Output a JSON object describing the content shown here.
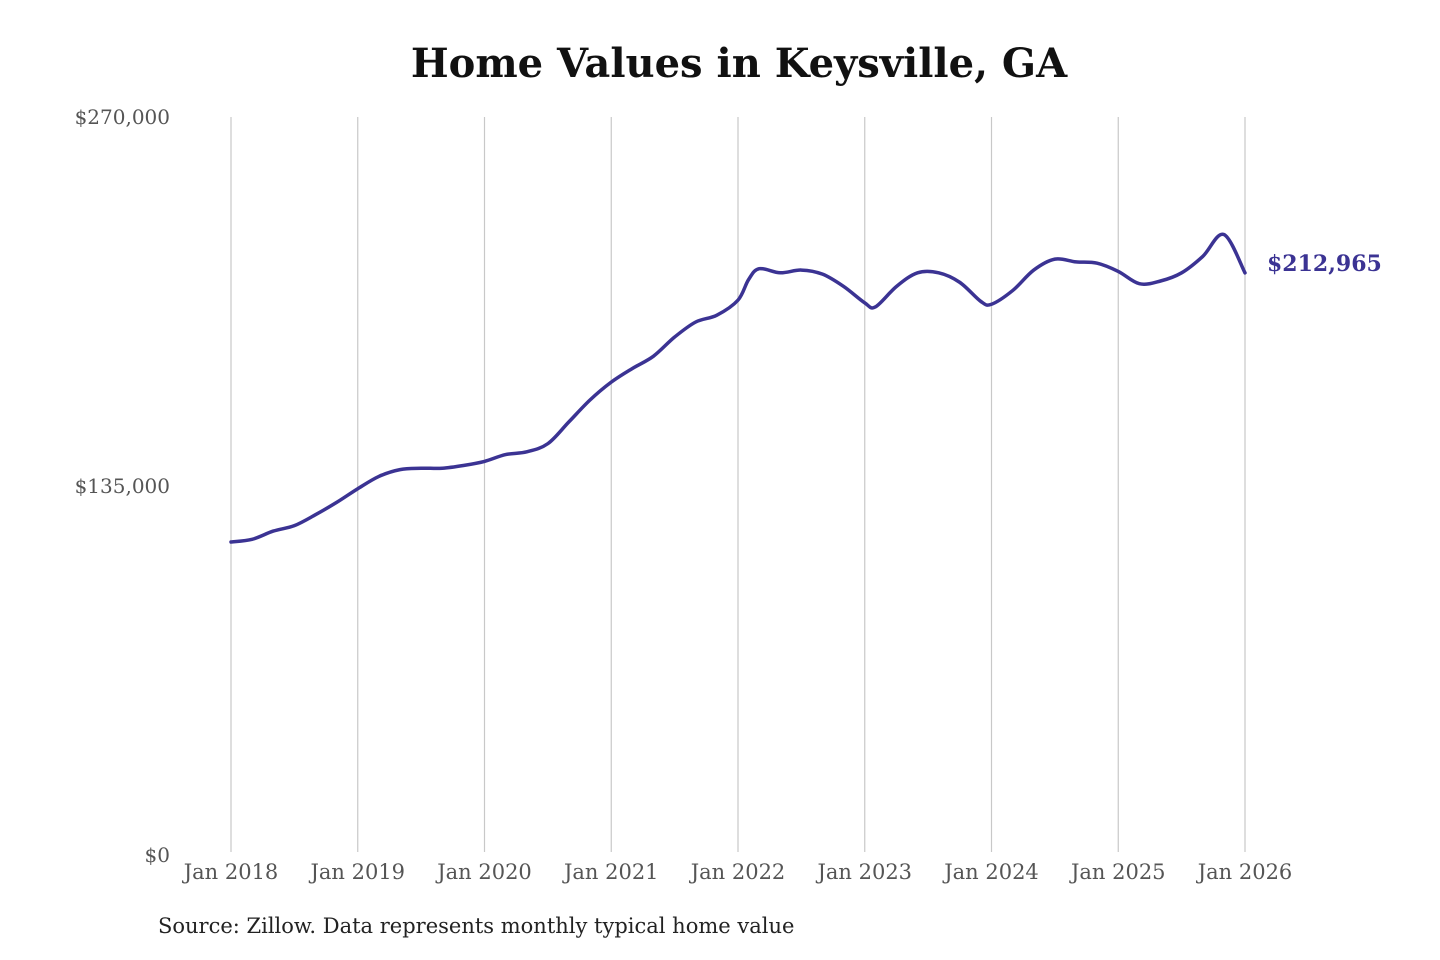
{
  "title": "Home Values in Keysville, GA",
  "source": "Source: Zillow. Data represents monthly typical home value",
  "colors": {
    "line": "#3b3393",
    "grid": "#c8c8c8",
    "text": "#555555"
  },
  "chart_data": {
    "type": "line",
    "title": "Home Values in Keysville, GA",
    "xlabel": "",
    "ylabel": "",
    "ylim": [
      0,
      270000
    ],
    "xlim": [
      "2018-01",
      "2026-01"
    ],
    "grid": "vertical",
    "legend": "none",
    "y_ticks": [
      {
        "value": 0,
        "label": "$0"
      },
      {
        "value": 135000,
        "label": "$135,000"
      },
      {
        "value": 270000,
        "label": "$270,000"
      }
    ],
    "x_ticks": [
      {
        "date": "2018-01",
        "label": "Jan 2018"
      },
      {
        "date": "2019-01",
        "label": "Jan 2019"
      },
      {
        "date": "2020-01",
        "label": "Jan 2020"
      },
      {
        "date": "2021-01",
        "label": "Jan 2021"
      },
      {
        "date": "2022-01",
        "label": "Jan 2022"
      },
      {
        "date": "2023-01",
        "label": "Jan 2023"
      },
      {
        "date": "2024-01",
        "label": "Jan 2024"
      },
      {
        "date": "2025-01",
        "label": "Jan 2025"
      },
      {
        "date": "2026-01",
        "label": "Jan 2026"
      }
    ],
    "end_label": "$212,965",
    "series": [
      {
        "x": [
          "2018-01",
          "2018-03",
          "2018-05",
          "2018-07",
          "2018-09",
          "2018-11",
          "2019-01",
          "2019-03",
          "2019-05",
          "2019-07",
          "2019-09",
          "2019-11",
          "2020-01",
          "2020-03",
          "2020-05",
          "2020-07",
          "2020-09",
          "2020-11",
          "2021-01",
          "2021-03",
          "2021-05",
          "2021-07",
          "2021-09",
          "2021-11",
          "2022-01",
          "2022-02",
          "2022-03",
          "2022-05",
          "2022-07",
          "2022-09",
          "2022-11",
          "2023-01",
          "2023-02",
          "2023-04",
          "2023-06",
          "2023-08",
          "2023-10",
          "2023-12",
          "2024-01",
          "2024-03",
          "2024-05",
          "2024-07",
          "2024-09",
          "2024-11",
          "2025-01",
          "2025-03",
          "2025-05",
          "2025-07",
          "2025-09",
          "2025-11",
          "2026-01"
        ],
        "values": [
          114500,
          115500,
          118500,
          120500,
          124500,
          129000,
          134000,
          138500,
          141000,
          141500,
          141500,
          142500,
          144000,
          146500,
          147500,
          150500,
          158500,
          166500,
          173000,
          178000,
          182500,
          189500,
          195000,
          197500,
          203000,
          210500,
          214500,
          213000,
          214000,
          212500,
          208000,
          202000,
          200500,
          208000,
          213000,
          213000,
          209500,
          202500,
          201500,
          206500,
          214000,
          218000,
          217000,
          216500,
          213500,
          209000,
          210000,
          213000,
          219000,
          227000,
          212965
        ]
      }
    ]
  }
}
